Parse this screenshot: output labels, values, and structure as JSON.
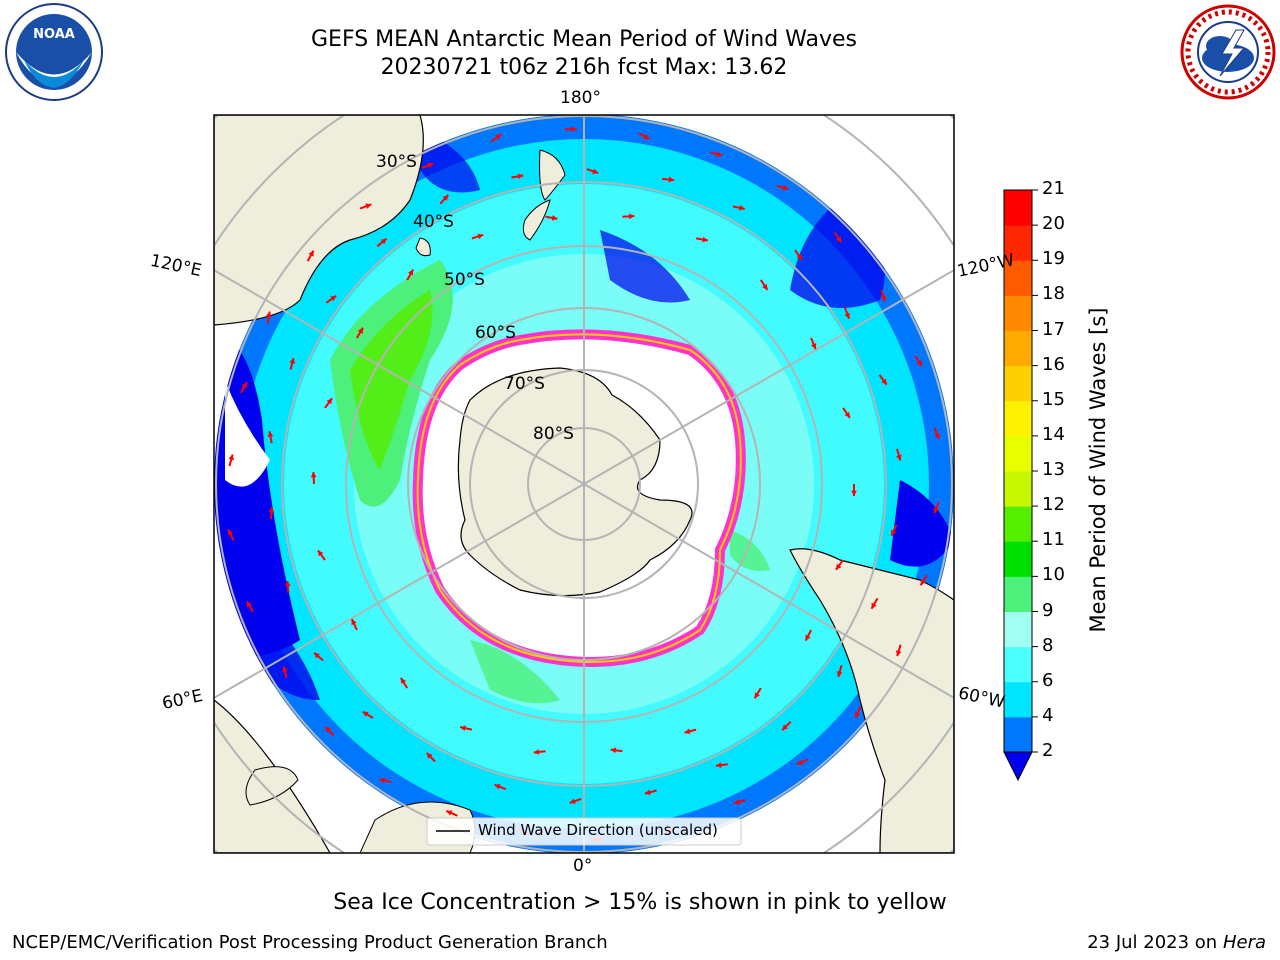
{
  "title": {
    "line1": "GEFS MEAN Antarctic Mean Period of Wind Waves",
    "line2": "20230721 t06z 216h fcst   Max: 13.62"
  },
  "logos": {
    "left": "NOAA",
    "right": "NATIONAL WEATHER SERVICE"
  },
  "longitude_labels": {
    "top": "180°",
    "bottom": "0°",
    "upper_left": "120°E",
    "upper_right": "120°W",
    "lower_left": "60°E",
    "lower_right": "60°W"
  },
  "latitude_labels": [
    "30°S",
    "40°S",
    "50°S",
    "60°S",
    "70°S",
    "80°S"
  ],
  "legend": {
    "line_label": "Wind Wave Direction (unscaled)"
  },
  "colorbar": {
    "title": "Mean Period of Wind Waves [s]",
    "ticks": [
      "2",
      "4",
      "6",
      "8",
      "9",
      "10",
      "11",
      "12",
      "13",
      "14",
      "15",
      "16",
      "17",
      "18",
      "19",
      "20",
      "21"
    ],
    "colors": [
      "#0077ff",
      "#00e5ff",
      "#4dffff",
      "#a0fff0",
      "#4cf07a",
      "#00e000",
      "#55ee00",
      "#c8f800",
      "#e8ff00",
      "#fff200",
      "#ffd000",
      "#ffaa00",
      "#ff8a00",
      "#ff5a00",
      "#ff2600",
      "#ff0000"
    ],
    "extend_min_color": "#0000ee"
  },
  "colors": {
    "land": "#efeddc",
    "ocean_deep_blue": "#0000ee",
    "ocean_blue": "#0077ff",
    "ocean_cyan": "#00e5ff",
    "ocean_light": "#4dffff",
    "ice_edge": "#ff33cc",
    "arrow": "#ff0000"
  },
  "caption": "Sea Ice Concentration > 15% is shown in pink to yellow",
  "footer": {
    "left": "NCEP/EMC/Verification Post Processing Product Generation Branch",
    "right_prefix": "23 Jul 2023 on ",
    "right_host": "Hera"
  }
}
